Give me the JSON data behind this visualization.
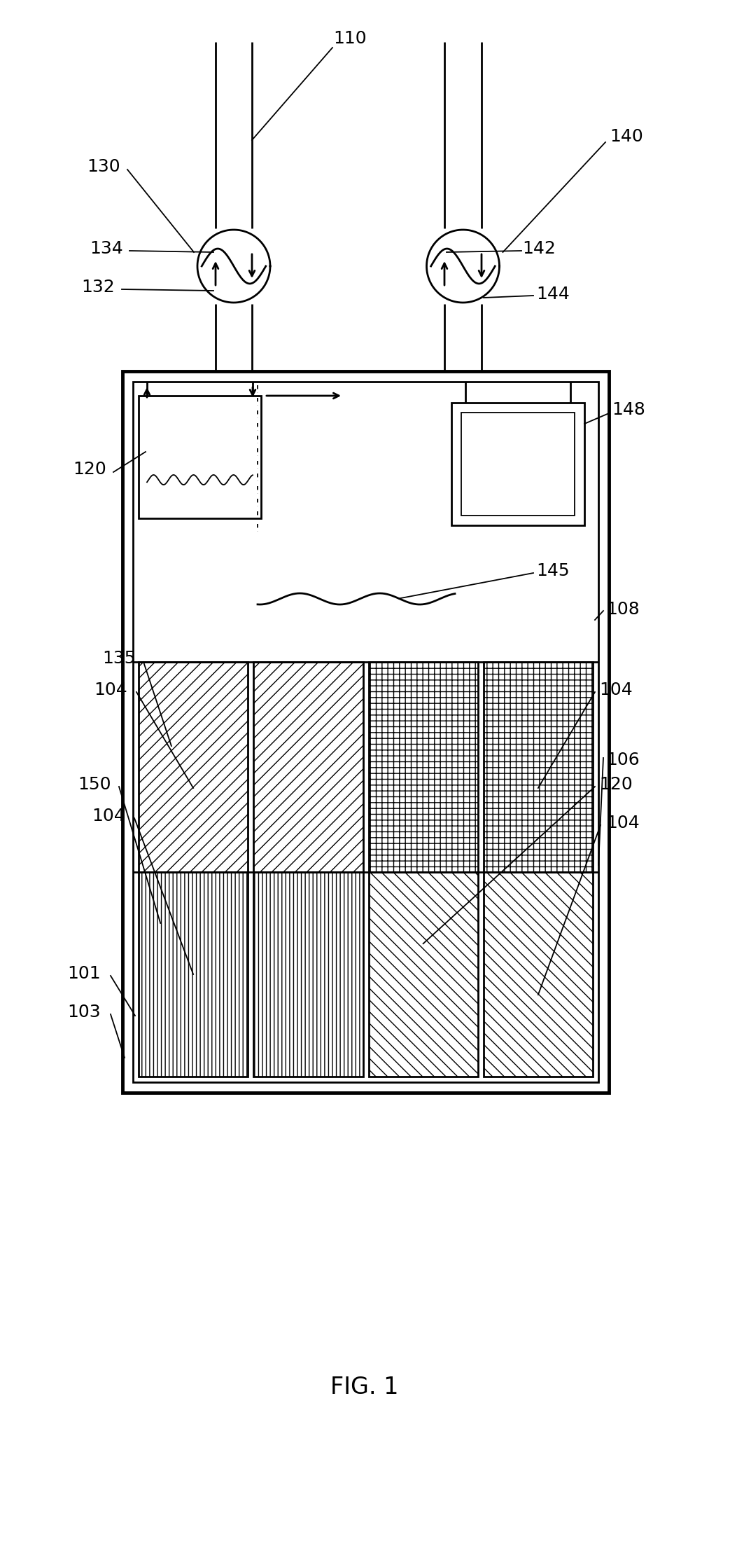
{
  "bg_color": "#ffffff",
  "line_color": "#000000",
  "figsize": [
    10.43,
    22.2
  ],
  "dpi": 100,
  "fig_label": "FIG. 1"
}
